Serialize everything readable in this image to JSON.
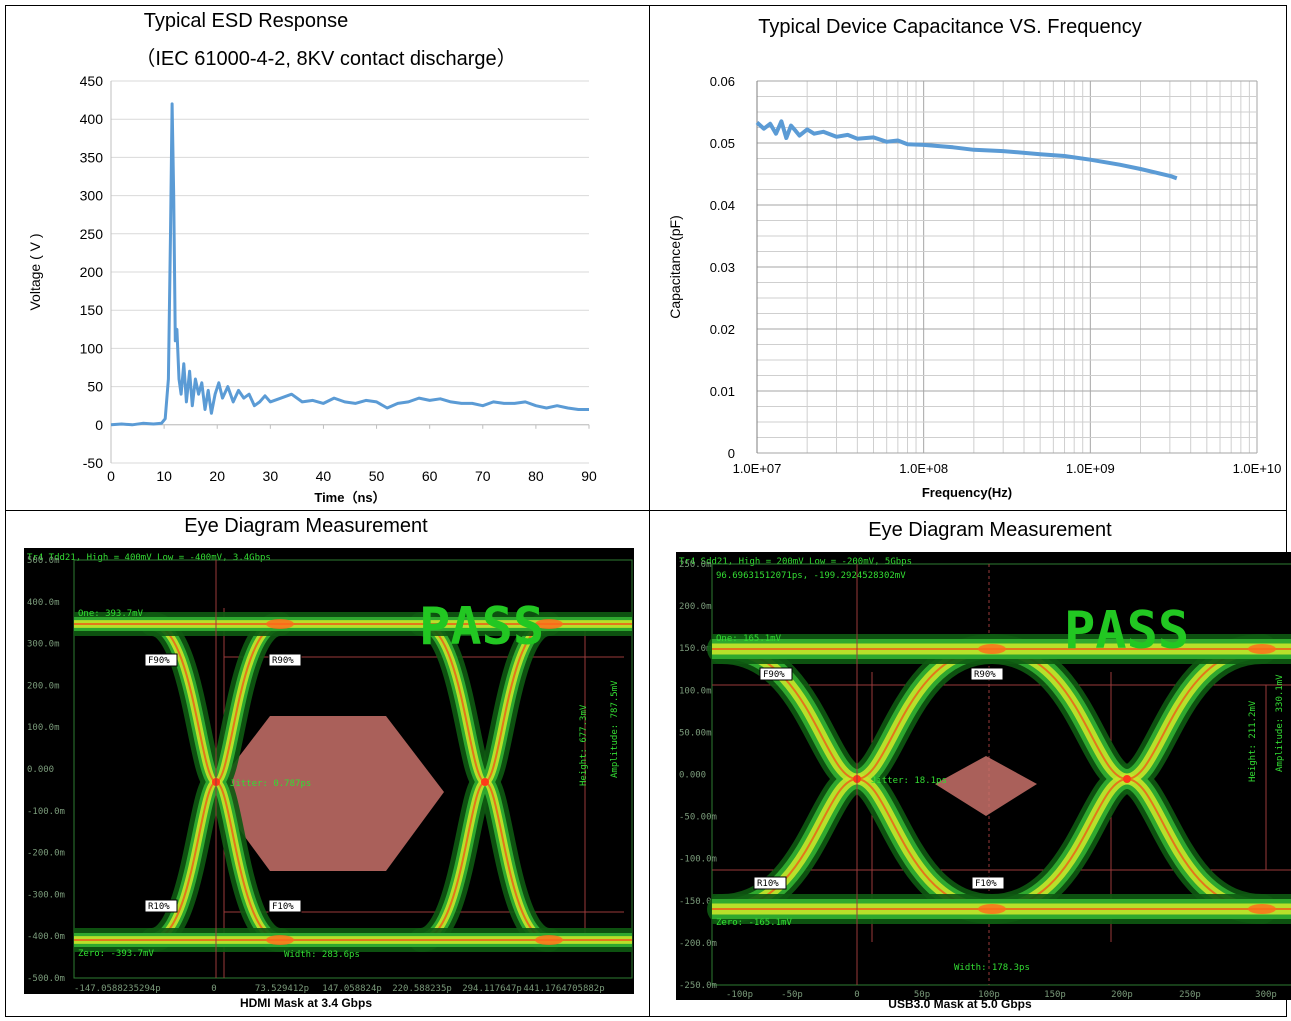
{
  "chart_data": [
    {
      "type": "line",
      "title": "Typical ESD Response",
      "subtitle": "（IEC 61000-4-2, 8KV contact discharge）",
      "xlabel": "Time（ns）",
      "ylabel": "Voltage ( V )",
      "xlim": [
        0,
        90
      ],
      "ylim": [
        -50,
        450
      ],
      "xticks": [
        0,
        10,
        20,
        30,
        40,
        50,
        60,
        70,
        80,
        90
      ],
      "yticks": [
        -50,
        0,
        50,
        100,
        150,
        200,
        250,
        300,
        350,
        400,
        450
      ],
      "grid": "horizontal",
      "color": "#5b9bd5",
      "series": [
        {
          "x": [
            0,
            2,
            4,
            6,
            8,
            9.5,
            10.2,
            10.8,
            11.2,
            11.5,
            11.8,
            12.1,
            12.4,
            12.8,
            13.2,
            13.7,
            14.2,
            14.8,
            15.3,
            15.9,
            16.5,
            17.1,
            17.7,
            18.3,
            18.9,
            19.6,
            20.3,
            21,
            22,
            23,
            24,
            25,
            26,
            27,
            28,
            29,
            30,
            32,
            34,
            36,
            38,
            40,
            42,
            44,
            46,
            48,
            50,
            52,
            54,
            56,
            58,
            60,
            62,
            64,
            66,
            68,
            70,
            72,
            74,
            76,
            78,
            80,
            82,
            84,
            86,
            88,
            90
          ],
          "y": [
            0,
            1,
            0,
            2,
            1,
            2,
            8,
            60,
            250,
            420,
            300,
            110,
            125,
            60,
            40,
            80,
            30,
            70,
            25,
            60,
            40,
            55,
            20,
            45,
            15,
            40,
            55,
            35,
            50,
            30,
            45,
            35,
            40,
            25,
            30,
            38,
            30,
            35,
            40,
            30,
            32,
            28,
            35,
            30,
            28,
            32,
            30,
            22,
            28,
            30,
            35,
            32,
            34,
            30,
            28,
            28,
            25,
            30,
            28,
            28,
            30,
            25,
            22,
            25,
            22,
            20,
            20
          ]
        }
      ]
    },
    {
      "type": "line",
      "title": "Typical Device Capacitance VS. Frequency",
      "xlabel": "Frequency(Hz)",
      "ylabel": "Capacitance(pF)",
      "xscale": "log",
      "xlim": [
        10000000,
        10000000000
      ],
      "ylim": [
        0,
        0.06
      ],
      "xticks": [
        "1.0E+07",
        "1.0E+08",
        "1.0E+09",
        "1.0E+10"
      ],
      "yticks": [
        0,
        0.01,
        0.02,
        0.03,
        0.04,
        0.05,
        0.06
      ],
      "grid": "both",
      "color": "#5b9bd5",
      "series": [
        {
          "x": [
            10000000,
            11000000,
            12000000,
            13000000,
            14000000,
            15000000,
            16000000,
            17000000,
            18000000,
            20000000,
            22000000,
            25000000,
            30000000,
            35000000,
            40000000,
            50000000,
            60000000,
            70000000,
            80000000,
            100000000,
            150000000,
            200000000,
            300000000,
            500000000,
            700000000,
            1000000000,
            1500000000,
            2000000000,
            2500000000,
            3000000000,
            3300000000
          ],
          "y": [
            0.0533,
            0.0523,
            0.0531,
            0.0515,
            0.0535,
            0.0508,
            0.0528,
            0.052,
            0.0512,
            0.0522,
            0.0515,
            0.0518,
            0.051,
            0.0513,
            0.0507,
            0.0509,
            0.0502,
            0.0504,
            0.0498,
            0.0497,
            0.0493,
            0.0489,
            0.0487,
            0.0482,
            0.0479,
            0.0473,
            0.0465,
            0.0458,
            0.0452,
            0.0447,
            0.0443
          ]
        }
      ]
    }
  ],
  "esd_panel": {
    "title": "Typical ESD Response",
    "subtitle": "（IEC 61000-4-2, 8KV contact discharge）",
    "xlabel": "Time（ns）",
    "ylabel": "Voltage ( V )"
  },
  "cap_panel": {
    "title": "Typical Device Capacitance VS. Frequency",
    "xlabel": "Frequency(Hz)",
    "ylabel": "Capacitance(pF)"
  },
  "eye_hdmi": {
    "panel_title": "Eye Diagram Measurement",
    "caption": "HDMI Mask at 3.4 Gbps",
    "header": "Tr4 Tdd21, High = 400mV Low = -400mV, 3.4Gbps",
    "status": "PASS",
    "one_label": "One: 393.7mV",
    "zero_label": "Zero: -393.7mV",
    "jitter": "Jitter: 0.787ps",
    "width": "Width: 283.6ps",
    "height": "Height: 677.3mV",
    "amplitude": "Amplitude: 787.5mV",
    "markers": [
      "F90%",
      "R90%",
      "R10%",
      "F10%"
    ],
    "yticks": [
      "500.0m",
      "400.0m",
      "300.0m",
      "200.0m",
      "100.0m",
      "0.000",
      "-100.0m",
      "-200.0m",
      "-300.0m",
      "-400.0m",
      "-500.0m"
    ],
    "xticks": [
      "-147.0588235294p",
      "0",
      "73.529412p",
      "147.058824p",
      "220.588235p",
      "294.117647p",
      "441.1764705882p"
    ]
  },
  "eye_usb": {
    "panel_title": "Eye Diagram Measurement",
    "caption": "USB3.0 Mask at 5.0 Gbps",
    "header": "Tr4 Sdd21, High = 200mV Low = -200mV, 5Gbps",
    "cursor": "96.69631512071ps, -199.2924528302mV",
    "status": "PASS",
    "one_label": "One: 165.1mV",
    "zero_label": "Zero: -165.1mV",
    "jitter": "Jitter: 18.1ps",
    "width": "Width: 178.3ps",
    "height": "Height: 211.2mV",
    "amplitude": "Amplitude: 330.1mV",
    "markers": [
      "F90%",
      "R90%",
      "R10%",
      "F10%"
    ],
    "yticks": [
      "250.0m",
      "200.0m",
      "150.0m",
      "100.0m",
      "50.00m",
      "0.000",
      "-50.00m",
      "-100.0m",
      "-150.0m",
      "-200.0m",
      "-250.0m"
    ],
    "xticks": [
      "-100p",
      "-50p",
      "0",
      "50p",
      "100p",
      "150p",
      "200p",
      "250p",
      "300p"
    ]
  },
  "colors": {
    "line": "#5b9bd5",
    "scope_bg": "#000000",
    "eye_green": "#33dd33",
    "pass": "#22c722",
    "mask": "#c8716a"
  }
}
